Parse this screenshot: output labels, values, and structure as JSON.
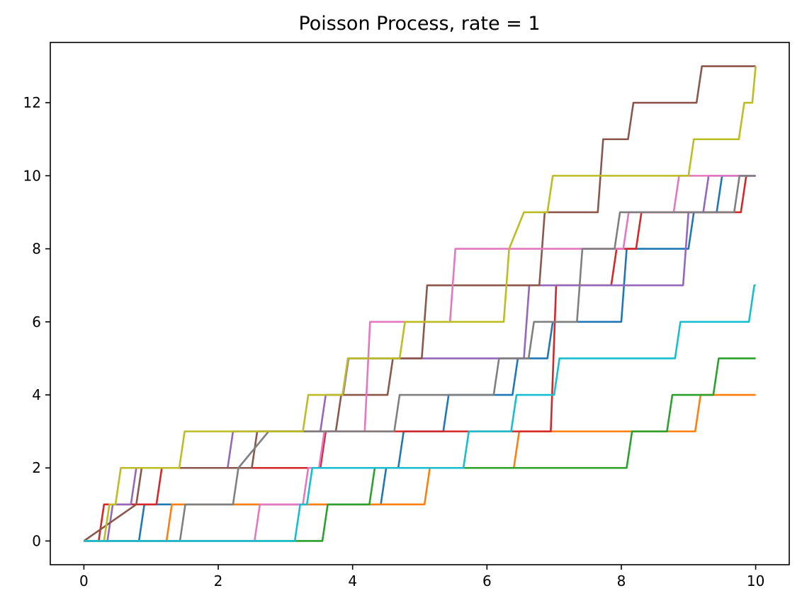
{
  "chart_data": {
    "type": "line",
    "title": "Poisson Process, rate = 1",
    "xlabel": "",
    "ylabel": "",
    "xlim": [
      -0.5,
      10.5
    ],
    "ylim": [
      -0.65,
      13.65
    ],
    "xticks": [
      0,
      2,
      4,
      6,
      8,
      10
    ],
    "xtick_labels": [
      "0",
      "2",
      "4",
      "6",
      "8",
      "10"
    ],
    "yticks": [
      0,
      2,
      4,
      6,
      8,
      10,
      12
    ],
    "ytick_labels": [
      "0",
      "2",
      "4",
      "6",
      "8",
      "10",
      "12"
    ],
    "grid": false,
    "legend": "none",
    "series": [
      {
        "color": "#1f77b4",
        "x": [
          0,
          0.82,
          0.9,
          4.42,
          4.5,
          4.68,
          4.76,
          5.35,
          5.43,
          6.38,
          6.46,
          6.9,
          6.98,
          8.0,
          8.08,
          9.0,
          9.08,
          9.42,
          9.5,
          10.0
        ],
        "y": [
          0,
          0,
          1,
          1,
          2,
          2,
          3,
          3,
          4,
          4,
          5,
          5,
          6,
          6,
          8,
          8,
          9,
          9,
          10,
          10
        ]
      },
      {
        "color": "#ff7f0e",
        "x": [
          0,
          1.23,
          1.31,
          5.07,
          5.15,
          6.4,
          6.48,
          9.1,
          9.18,
          10.0
        ],
        "y": [
          0,
          0,
          1,
          1,
          2,
          2,
          3,
          3,
          4,
          4
        ]
      },
      {
        "color": "#2ca02c",
        "x": [
          0,
          3.55,
          3.63,
          4.25,
          4.33,
          8.08,
          8.16,
          8.68,
          8.76,
          9.37,
          9.45,
          10.0
        ],
        "y": [
          0,
          0,
          1,
          1,
          2,
          2,
          3,
          3,
          4,
          4,
          5,
          5
        ]
      },
      {
        "color": "#d62728",
        "x": [
          0,
          0.22,
          0.3,
          1.08,
          1.16,
          3.52,
          3.6,
          3.95,
          4.03,
          6.95,
          7.03,
          7.85,
          7.93,
          8.22,
          8.3,
          9.78,
          9.86,
          10.0
        ],
        "y": [
          0,
          0,
          1,
          1,
          2,
          2,
          3,
          3,
          3,
          3,
          7,
          7,
          8,
          8,
          9,
          9,
          10,
          10
        ]
      },
      {
        "color": "#9467bd",
        "x": [
          0,
          0.35,
          0.43,
          0.7,
          0.78,
          2.14,
          2.22,
          3.52,
          3.6,
          3.86,
          3.94,
          4.52,
          4.6,
          6.55,
          6.63,
          7.1,
          7.18,
          8.92,
          9.0,
          9.22,
          9.3,
          10.0
        ],
        "y": [
          0,
          0,
          1,
          1,
          2,
          2,
          3,
          3,
          4,
          4,
          5,
          5,
          5,
          5,
          7,
          7,
          7,
          7,
          9,
          9,
          10,
          10
        ]
      },
      {
        "color": "#8c564b",
        "x": [
          0,
          0.78,
          0.86,
          2.5,
          2.58,
          3.75,
          3.83,
          4.52,
          4.6,
          5.03,
          5.11,
          6.78,
          6.86,
          7.42,
          7.5,
          7.65,
          7.73,
          8.1,
          8.18,
          9.12,
          9.2,
          10.0
        ],
        "y": [
          0,
          1,
          2,
          2,
          3,
          3,
          4,
          4,
          5,
          5,
          7,
          7,
          9,
          9,
          9,
          9,
          11,
          11,
          12,
          12,
          13,
          13
        ]
      },
      {
        "color": "#e377c2",
        "x": [
          0,
          2.54,
          2.62,
          3.26,
          3.34,
          3.5,
          3.58,
          4.18,
          4.26,
          5.45,
          5.53,
          5.62,
          5.7,
          8.03,
          8.11,
          8.78,
          8.86,
          10.0
        ],
        "y": [
          0,
          0,
          1,
          1,
          2,
          2,
          3,
          3,
          6,
          6,
          8,
          8,
          8,
          8,
          9,
          9,
          10,
          10
        ]
      },
      {
        "color": "#7f7f7f",
        "x": [
          0,
          1.43,
          1.51,
          2.22,
          2.3,
          2.75,
          2.83,
          4.62,
          4.7,
          6.1,
          6.18,
          6.62,
          6.7,
          7.34,
          7.42,
          7.9,
          7.98,
          9.68,
          9.76,
          10.0
        ],
        "y": [
          0,
          0,
          1,
          1,
          2,
          3,
          3,
          3,
          4,
          4,
          5,
          5,
          6,
          6,
          8,
          8,
          9,
          9,
          10,
          10
        ]
      },
      {
        "color": "#bcbd22",
        "x": [
          0,
          0.3,
          0.38,
          0.47,
          0.55,
          1.42,
          1.5,
          3.26,
          3.34,
          3.85,
          3.93,
          4.7,
          4.78,
          6.25,
          6.33,
          6.55,
          6.63,
          6.9,
          6.98,
          9.0,
          9.08,
          9.75,
          9.83,
          9.95,
          10.0
        ],
        "y": [
          0,
          0,
          1,
          1,
          2,
          2,
          3,
          3,
          4,
          4,
          5,
          5,
          6,
          6,
          8,
          9,
          9,
          9,
          10,
          10,
          11,
          11,
          12,
          12,
          13
        ]
      },
      {
        "color": "#17becf",
        "x": [
          0,
          3.14,
          3.22,
          3.32,
          3.4,
          5.65,
          5.73,
          6.36,
          6.44,
          7.0,
          7.08,
          8.8,
          8.88,
          9.9,
          9.98,
          10.0
        ],
        "y": [
          0,
          0,
          1,
          1,
          2,
          2,
          3,
          3,
          4,
          4,
          5,
          5,
          6,
          6,
          7,
          7
        ]
      }
    ]
  }
}
